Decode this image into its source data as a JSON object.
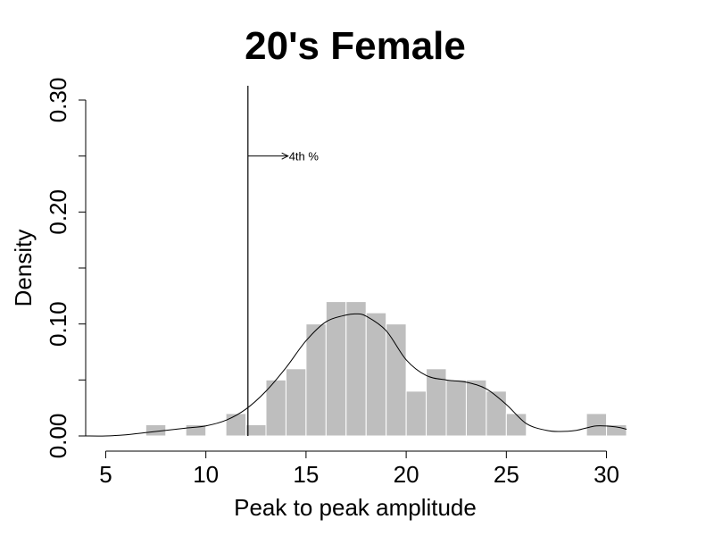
{
  "chart_data": {
    "type": "bar",
    "title": "20's Female",
    "xlabel": "Peak to peak amplitude",
    "ylabel": "Density",
    "xlim": [
      4,
      31
    ],
    "ylim": [
      0,
      0.3
    ],
    "x_ticks": [
      5,
      10,
      15,
      20,
      25,
      30
    ],
    "x_tick_labels": [
      "5",
      "10",
      "15",
      "20",
      "25",
      "30"
    ],
    "y_ticks": [
      0,
      0.05,
      0.1,
      0.15,
      0.2,
      0.25,
      0.3
    ],
    "y_tick_labels": [
      "0.00",
      "",
      "0.10",
      "",
      "0.20",
      "",
      "0.30"
    ],
    "bin_width": 1,
    "bins": [
      {
        "start": 7,
        "end": 8,
        "density": 0.01
      },
      {
        "start": 9,
        "end": 10,
        "density": 0.01
      },
      {
        "start": 11,
        "end": 12,
        "density": 0.02
      },
      {
        "start": 12,
        "end": 13,
        "density": 0.01
      },
      {
        "start": 13,
        "end": 14,
        "density": 0.05
      },
      {
        "start": 14,
        "end": 15,
        "density": 0.06
      },
      {
        "start": 15,
        "end": 16,
        "density": 0.1
      },
      {
        "start": 16,
        "end": 17,
        "density": 0.12
      },
      {
        "start": 17,
        "end": 18,
        "density": 0.12
      },
      {
        "start": 18,
        "end": 19,
        "density": 0.11
      },
      {
        "start": 19,
        "end": 20,
        "density": 0.1
      },
      {
        "start": 20,
        "end": 21,
        "density": 0.04
      },
      {
        "start": 21,
        "end": 22,
        "density": 0.06
      },
      {
        "start": 22,
        "end": 23,
        "density": 0.05
      },
      {
        "start": 23,
        "end": 24,
        "density": 0.05
      },
      {
        "start": 24,
        "end": 25,
        "density": 0.04
      },
      {
        "start": 25,
        "end": 26,
        "density": 0.02
      },
      {
        "start": 29,
        "end": 30,
        "density": 0.02
      },
      {
        "start": 30,
        "end": 31,
        "density": 0.01
      }
    ],
    "density_curve": {
      "x": [
        4,
        5,
        6,
        7,
        8,
        9,
        10,
        11,
        12,
        13,
        14,
        15,
        16,
        17,
        17.5,
        18,
        19,
        20,
        21,
        22,
        23,
        24,
        25,
        26,
        27,
        27.7,
        28.5,
        29.5,
        30.5,
        31
      ],
      "y": [
        0.0,
        0.0,
        0.001,
        0.003,
        0.005,
        0.007,
        0.009,
        0.014,
        0.024,
        0.04,
        0.061,
        0.085,
        0.102,
        0.108,
        0.109,
        0.107,
        0.094,
        0.068,
        0.054,
        0.05,
        0.048,
        0.042,
        0.028,
        0.011,
        0.005,
        0.004,
        0.005,
        0.009,
        0.008,
        0.006
      ]
    },
    "percentile_line": {
      "x": 12.1,
      "label": "4th %",
      "arrow_y": 0.25,
      "arrow_to_x": 14.1
    }
  }
}
